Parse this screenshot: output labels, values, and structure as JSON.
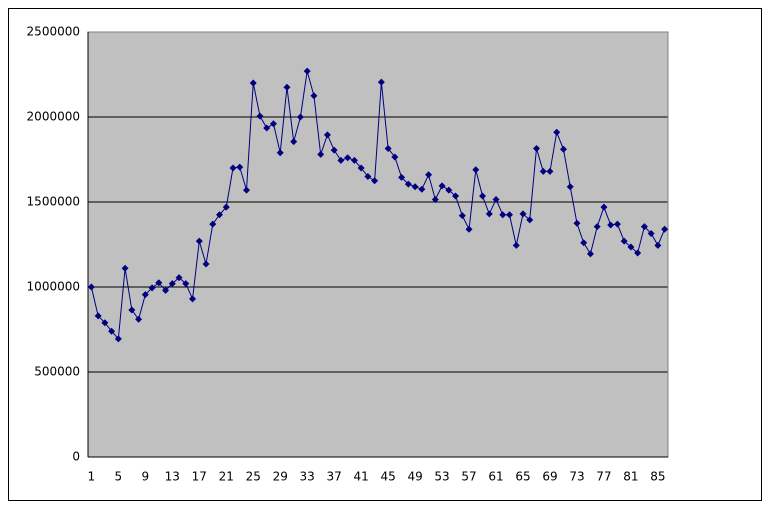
{
  "chart_data": {
    "type": "line",
    "categories": [
      "1",
      null,
      null,
      null,
      "5",
      null,
      null,
      null,
      "9",
      null,
      null,
      null,
      "13",
      null,
      null,
      null,
      "17",
      null,
      null,
      null,
      "21",
      null,
      null,
      null,
      "25",
      null,
      null,
      null,
      "29",
      null,
      null,
      null,
      "33",
      null,
      null,
      null,
      "37",
      null,
      null,
      null,
      "41",
      null,
      null,
      null,
      "45",
      null,
      null,
      null,
      "49",
      null,
      null,
      null,
      "53",
      null,
      null,
      null,
      "57",
      null,
      null,
      null,
      "61",
      null,
      null,
      null,
      "65",
      null,
      null,
      null,
      "69",
      null,
      null,
      null,
      "73",
      null,
      null,
      null,
      "77",
      null,
      null,
      null,
      "81",
      null,
      null,
      null,
      "85",
      null
    ],
    "values": [
      1000000,
      830000,
      790000,
      740000,
      695000,
      1110000,
      865000,
      810000,
      955000,
      995000,
      1025000,
      980000,
      1020000,
      1055000,
      1020000,
      930000,
      1270000,
      1135000,
      1370000,
      1425000,
      1470000,
      1700000,
      1705000,
      1570000,
      2200000,
      2005000,
      1935000,
      1960000,
      1790000,
      2175000,
      1855000,
      2000000,
      2270000,
      2125000,
      1780000,
      1895000,
      1805000,
      1745000,
      1760000,
      1745000,
      1700000,
      1650000,
      1625000,
      2205000,
      1815000,
      1765000,
      1645000,
      1605000,
      1590000,
      1575000,
      1660000,
      1515000,
      1595000,
      1570000,
      1535000,
      1420000,
      1340000,
      1690000,
      1535000,
      1430000,
      1515000,
      1425000,
      1425000,
      1245000,
      1430000,
      1395000,
      1815000,
      1680000,
      1680000,
      1910000,
      1810000,
      1590000,
      1375000,
      1260000,
      1195000,
      1355000,
      1470000,
      1365000,
      1370000,
      1270000,
      1235000,
      1200000,
      1355000,
      1315000,
      1245000,
      1340000
    ],
    "color": "#000080",
    "ylim": [
      0,
      2500000
    ],
    "yticks": [
      0,
      500000,
      1000000,
      1500000,
      2000000,
      2500000
    ],
    "grid": true
  }
}
